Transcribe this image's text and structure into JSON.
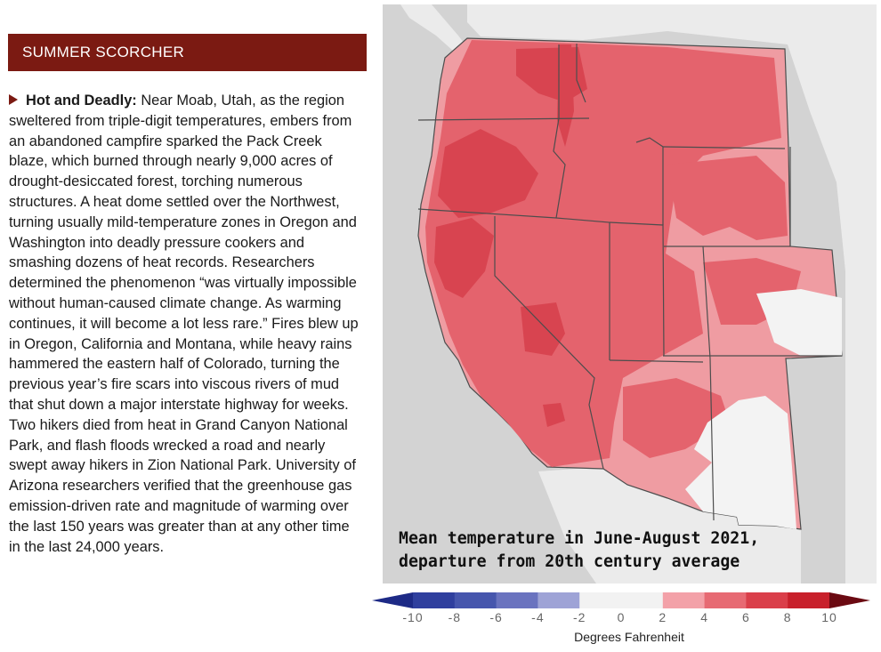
{
  "header": {
    "title": "SUMMER SCORCHER"
  },
  "article": {
    "lead": "Hot and Deadly:",
    "body": " Near Moab, Utah, as the region sweltered from triple-digit temperatures, embers from an abandoned campfire sparked the Pack Creek blaze, which burned through nearly 9,000 acres of drought-desiccated forest, torching numerous structures. A heat dome settled over the Northwest, turning usually mild-temperature zones in Oregon and Washington into deadly pressure cookers and smashing dozens of heat records. Researchers determined the phenomenon “was virtually impossible without human-caused climate change. As warming continues, it will become a lot less rare.” Fires blew up in Oregon, California and Montana, while heavy rains hammered the eastern half of Colorado, turning the previous year’s fire scars into viscous rivers of mud that shut down a major interstate highway for weeks. Two hikers died from heat in Grand Canyon National Park, and flash floods wrecked a road and nearly swept away hikers in Zion National Park. University of Arizona researchers verified that the greenhouse gas emission-driven rate and magnitude of warming over the last 150 years was greater than at any other time in the last 24,000 years."
  },
  "map": {
    "caption_line1": "Mean temperature in June-August 2021,",
    "caption_line2": "departure from 20th century average",
    "colors": {
      "ocean": "#d3d3d3",
      "other_land": "#ebebeb",
      "border": "#4d4d4d",
      "base_2_4": "#ef9ca2",
      "mid_4_6": "#e4636d",
      "hot_6_8": "#d84450",
      "neutral": "#f3f3f3",
      "bullet": "#7b1a12"
    }
  },
  "legend": {
    "ticks": [
      "-10",
      "-8",
      "-6",
      "-4",
      "-2",
      "0",
      "2",
      "4",
      "6",
      "8",
      "10"
    ],
    "unit": "Degrees Fahrenheit",
    "colors": [
      "#1d2a86",
      "#2f3f9e",
      "#4656ad",
      "#6a73bf",
      "#9ea3d6",
      "#f2f2f2",
      "#f2f2f2",
      "#f3a1a8",
      "#e76a73",
      "#da3f4a",
      "#c8202b",
      "#6b0a12"
    ]
  }
}
